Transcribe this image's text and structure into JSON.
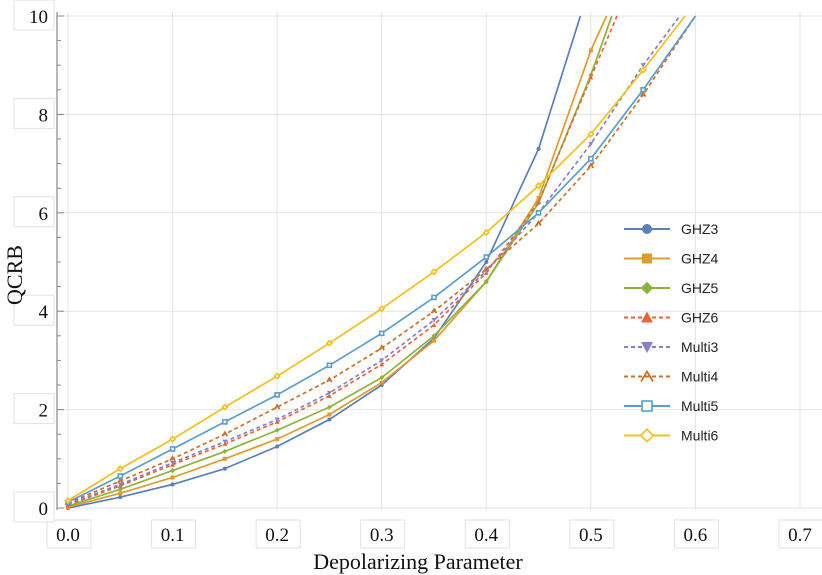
{
  "chart_data": {
    "type": "line",
    "xlabel": "Depolarizing Parameter",
    "ylabel": "QCRB",
    "xlim": [
      0.0,
      0.7
    ],
    "ylim": [
      0,
      10
    ],
    "x_ticks": [
      "0.0",
      "0.1",
      "0.2",
      "0.3",
      "0.4",
      "0.5",
      "0.6",
      "0.7"
    ],
    "y_ticks": [
      "0",
      "2",
      "4",
      "6",
      "8",
      "10"
    ],
    "grid": true,
    "legend_position": "right",
    "series": [
      {
        "name": "GHZ3",
        "color": "#5b7fb8",
        "marker": "circle",
        "dashed": false,
        "x": [
          0.0,
          0.05,
          0.1,
          0.15,
          0.2,
          0.25,
          0.3,
          0.35,
          0.4,
          0.45,
          0.49
        ],
        "y": [
          0.0,
          0.22,
          0.48,
          0.8,
          1.25,
          1.8,
          2.5,
          3.45,
          5.0,
          7.3,
          10.0
        ]
      },
      {
        "name": "GHZ4",
        "color": "#e19a2e",
        "marker": "square",
        "dashed": false,
        "x": [
          0.0,
          0.05,
          0.1,
          0.15,
          0.2,
          0.25,
          0.3,
          0.35,
          0.4,
          0.45,
          0.5,
          0.515
        ],
        "y": [
          0.02,
          0.3,
          0.62,
          1.0,
          1.4,
          1.9,
          2.55,
          3.4,
          4.6,
          6.3,
          9.3,
          10.0
        ]
      },
      {
        "name": "GHZ5",
        "color": "#8db33c",
        "marker": "diamond",
        "dashed": false,
        "x": [
          0.0,
          0.05,
          0.1,
          0.15,
          0.2,
          0.25,
          0.3,
          0.35,
          0.4,
          0.45,
          0.5,
          0.52
        ],
        "y": [
          0.04,
          0.38,
          0.76,
          1.15,
          1.58,
          2.05,
          2.65,
          3.5,
          4.6,
          6.2,
          8.8,
          10.0
        ]
      },
      {
        "name": "GHZ6",
        "color": "#e8653a",
        "marker": "triangle-up",
        "dashed": true,
        "x": [
          0.0,
          0.05,
          0.1,
          0.15,
          0.2,
          0.25,
          0.3,
          0.35,
          0.4,
          0.45,
          0.5,
          0.525
        ],
        "y": [
          0.06,
          0.45,
          0.88,
          1.3,
          1.75,
          2.28,
          2.92,
          3.72,
          4.78,
          6.22,
          8.75,
          10.0
        ]
      },
      {
        "name": "Multi3",
        "color": "#8b7fc7",
        "marker": "triangle-down",
        "dashed": true,
        "x": [
          0.0,
          0.05,
          0.1,
          0.15,
          0.2,
          0.25,
          0.3,
          0.35,
          0.4,
          0.45,
          0.5,
          0.55,
          0.585
        ],
        "y": [
          0.08,
          0.48,
          0.92,
          1.35,
          1.8,
          2.34,
          3.0,
          3.82,
          4.82,
          6.0,
          7.4,
          9.0,
          10.0
        ]
      },
      {
        "name": "Multi4",
        "color": "#c8722e",
        "marker": "tent",
        "dashed": true,
        "x": [
          0.0,
          0.05,
          0.1,
          0.15,
          0.2,
          0.25,
          0.3,
          0.35,
          0.4,
          0.45,
          0.5,
          0.55,
          0.6
        ],
        "y": [
          0.1,
          0.55,
          1.0,
          1.5,
          2.05,
          2.6,
          3.25,
          4.0,
          4.85,
          5.78,
          6.95,
          8.4,
          10.0
        ]
      },
      {
        "name": "Multi5",
        "color": "#5b9dcb",
        "marker": "square-open",
        "dashed": false,
        "x": [
          0.0,
          0.05,
          0.1,
          0.15,
          0.2,
          0.25,
          0.3,
          0.35,
          0.4,
          0.45,
          0.5,
          0.55,
          0.6
        ],
        "y": [
          0.12,
          0.65,
          1.2,
          1.75,
          2.3,
          2.9,
          3.55,
          4.28,
          5.1,
          6.0,
          7.1,
          8.5,
          10.0
        ]
      },
      {
        "name": "Multi6",
        "color": "#f2c01e",
        "marker": "diamond-open",
        "dashed": false,
        "x": [
          0.0,
          0.05,
          0.1,
          0.15,
          0.2,
          0.25,
          0.3,
          0.35,
          0.4,
          0.45,
          0.5,
          0.55,
          0.59
        ],
        "y": [
          0.15,
          0.8,
          1.4,
          2.05,
          2.68,
          3.35,
          4.05,
          4.8,
          5.6,
          6.55,
          7.6,
          8.9,
          10.0
        ]
      }
    ]
  }
}
